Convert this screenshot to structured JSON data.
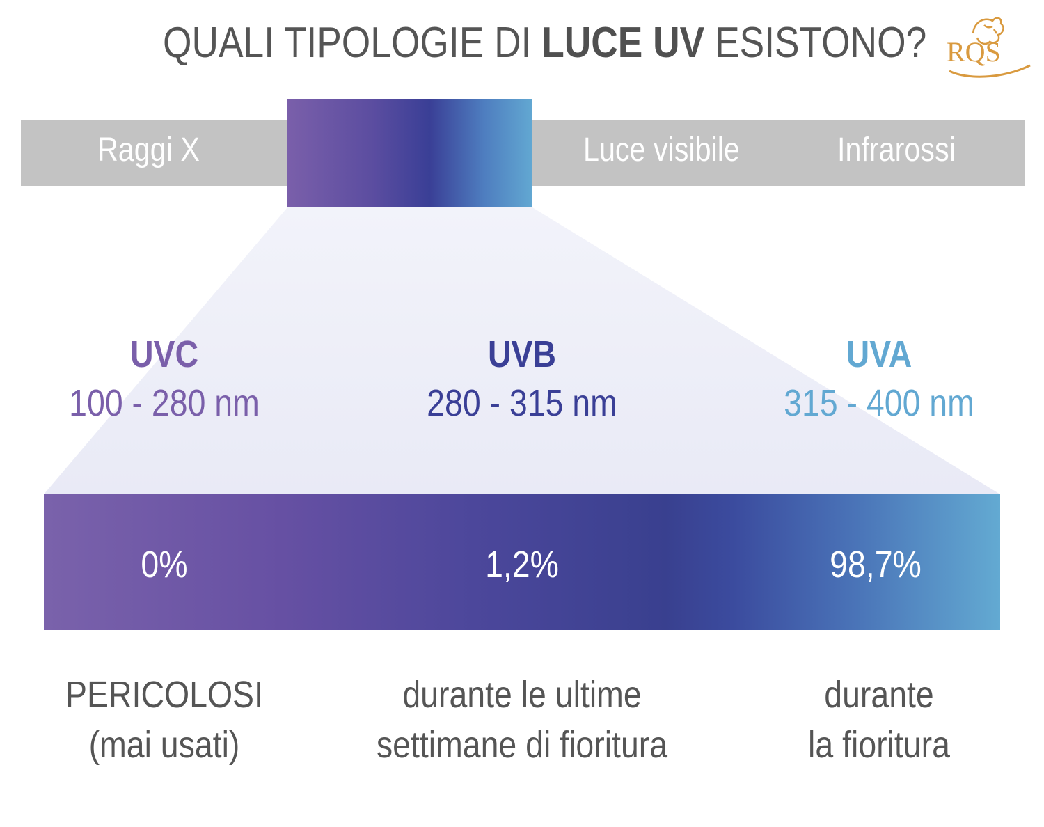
{
  "title": {
    "prefix": "QUALI TIPOLOGIE DI ",
    "emphasis": "LUCE UV",
    "suffix": " ESISTONO?"
  },
  "logo": {
    "text": "RQS",
    "icon": "lion-crest-icon",
    "color": "#d99a3f"
  },
  "spectrum": {
    "left_label": "Raggi X",
    "middle_label": "Luce visibile",
    "right_label": "Infrarossi"
  },
  "bands": [
    {
      "name": "UVC",
      "range": "100 - 280 nm",
      "color": "#7a5faa",
      "share": "0%",
      "note_line1": "PERICOLOSI",
      "note_line2": "(mai usati)"
    },
    {
      "name": "UVB",
      "range": "280 - 315 nm",
      "color": "#3a3f96",
      "share": "1,2%",
      "note_line1": "durante le ultime",
      "note_line2": "settimane di fioritura"
    },
    {
      "name": "UVA",
      "range": "315 - 400 nm",
      "color": "#62a8d2",
      "share": "98,7%",
      "note_line1": "durante",
      "note_line2": "la fioritura"
    }
  ],
  "colors": {
    "spectrum_gray": "#c3c3c3",
    "cone_fill": "#ecedf7",
    "text_gray": "#555555"
  }
}
